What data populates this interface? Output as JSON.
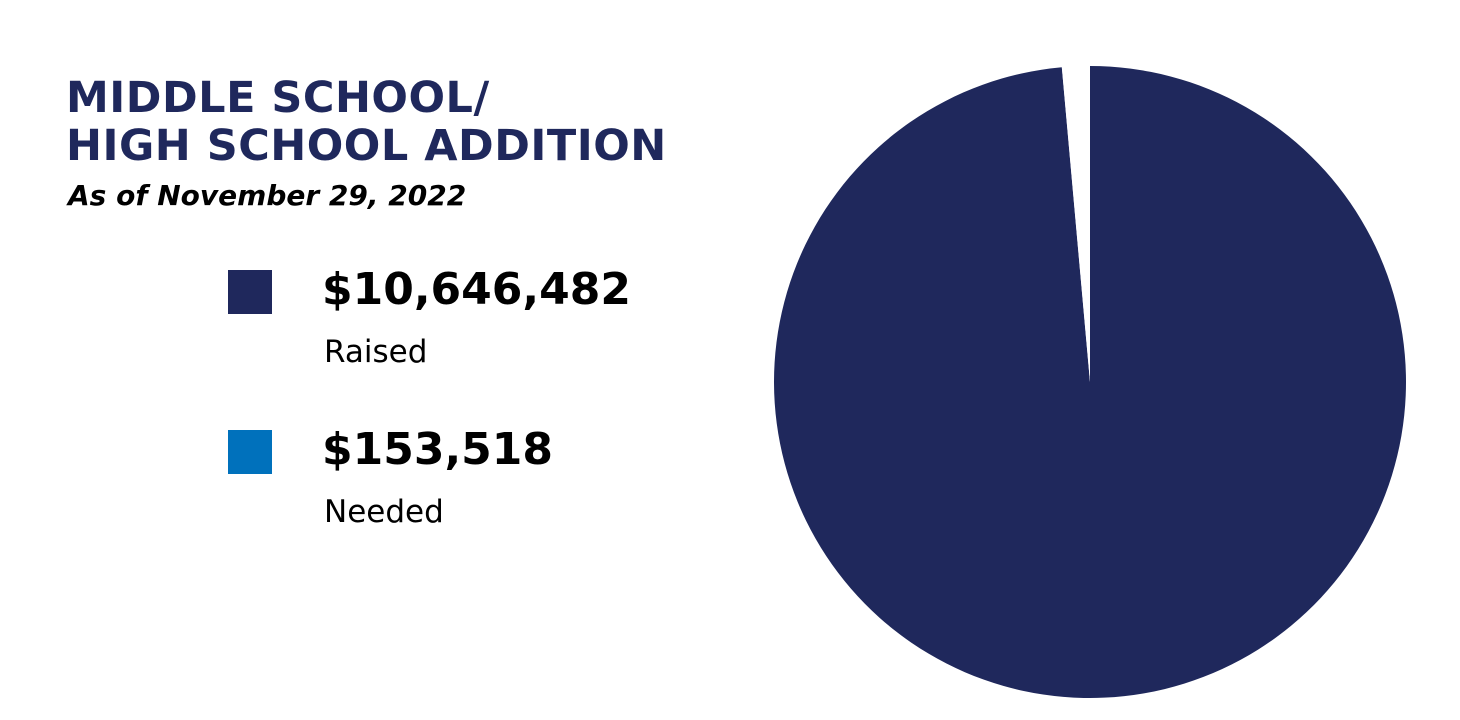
{
  "title_lines": [
    "MIDDLE SCHOOL/",
    "HIGH SCHOOL ADDITION"
  ],
  "subtitle": "As of November 29, 2022",
  "legend": [
    {
      "value_text": "$10,646,482",
      "label": "Raised",
      "color": "#1f285c"
    },
    {
      "value_text": "$153,518",
      "label": "Needed",
      "color": "#0071bc"
    }
  ],
  "chart_data": {
    "type": "pie",
    "title": "MIDDLE SCHOOL/ HIGH SCHOOL ADDITION",
    "subtitle": "As of November 29, 2022",
    "categories": [
      "Raised",
      "Needed"
    ],
    "values": [
      10646482,
      153518
    ],
    "colors": [
      "#1f285c",
      "#ffffff"
    ],
    "start": "top",
    "direction": "clockwise",
    "legend_placement": "left"
  }
}
